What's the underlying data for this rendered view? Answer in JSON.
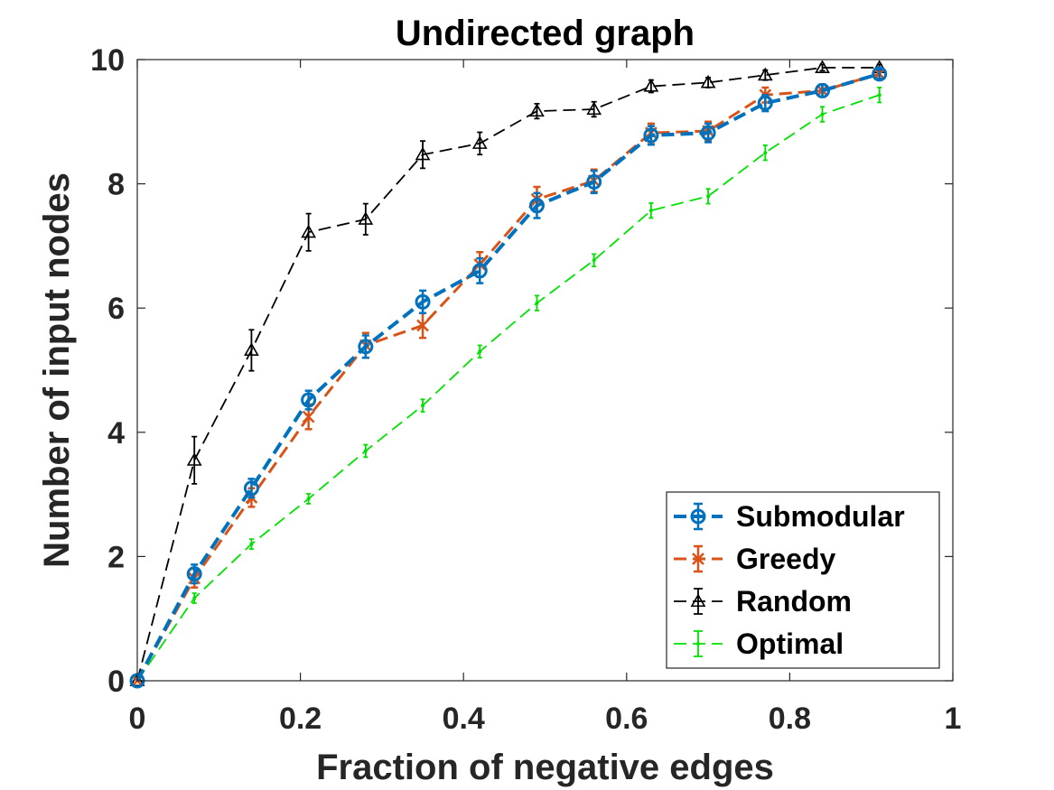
{
  "chart_data": {
    "type": "line",
    "title": "Undirected graph",
    "xlabel": "Fraction of negative edges",
    "ylabel": "Number of input nodes",
    "xlim": [
      0,
      1
    ],
    "ylim": [
      0,
      10
    ],
    "xticks": [
      0,
      0.2,
      0.4,
      0.6,
      0.8,
      1
    ],
    "xtick_labels": [
      "0",
      "0.2",
      "0.4",
      "0.6",
      "0.8",
      "1"
    ],
    "yticks": [
      0,
      2,
      4,
      6,
      8,
      10
    ],
    "ytick_labels": [
      "0",
      "2",
      "4",
      "6",
      "8",
      "10"
    ],
    "grid": false,
    "legend_position": "bottom-right",
    "x": [
      0,
      0.07,
      0.14,
      0.21,
      0.28,
      0.35,
      0.42,
      0.49,
      0.56,
      0.63,
      0.7,
      0.77,
      0.84,
      0.91
    ],
    "series": [
      {
        "name": "Submodular",
        "color": "#0072BD",
        "marker": "circle",
        "values": [
          0,
          1.72,
          3.1,
          4.52,
          5.38,
          6.1,
          6.6,
          7.65,
          8.03,
          8.78,
          8.82,
          9.3,
          9.5,
          9.77
        ],
        "errors": [
          0,
          0.15,
          0.15,
          0.15,
          0.18,
          0.18,
          0.2,
          0.2,
          0.18,
          0.15,
          0.15,
          0.13,
          0.1,
          0.08
        ]
      },
      {
        "name": "Greedy",
        "color": "#D95319",
        "marker": "x",
        "values": [
          0,
          1.65,
          2.95,
          4.25,
          5.4,
          5.72,
          6.7,
          7.75,
          8.05,
          8.82,
          8.85,
          9.43,
          9.5,
          9.77
        ],
        "errors": [
          0,
          0.15,
          0.15,
          0.2,
          0.2,
          0.2,
          0.2,
          0.2,
          0.18,
          0.15,
          0.15,
          0.12,
          0.1,
          0.08
        ]
      },
      {
        "name": "Random",
        "color": "#000000",
        "marker": "triangle",
        "values": [
          0,
          3.55,
          5.32,
          7.22,
          7.43,
          8.47,
          8.65,
          9.17,
          9.2,
          9.57,
          9.63,
          9.75,
          9.87,
          9.87
        ],
        "errors": [
          0,
          0.38,
          0.33,
          0.3,
          0.25,
          0.22,
          0.18,
          0.12,
          0.12,
          0.1,
          0.08,
          0.08,
          0.05,
          0.05
        ]
      },
      {
        "name": "Optimal",
        "color": "#00E100",
        "marker": "point",
        "values": [
          0,
          1.33,
          2.2,
          2.93,
          3.7,
          4.43,
          5.3,
          6.08,
          6.77,
          7.57,
          7.8,
          8.5,
          9.12,
          9.43
        ],
        "errors": [
          0,
          0.08,
          0.08,
          0.08,
          0.1,
          0.1,
          0.1,
          0.12,
          0.1,
          0.12,
          0.12,
          0.12,
          0.12,
          0.12
        ]
      }
    ]
  }
}
